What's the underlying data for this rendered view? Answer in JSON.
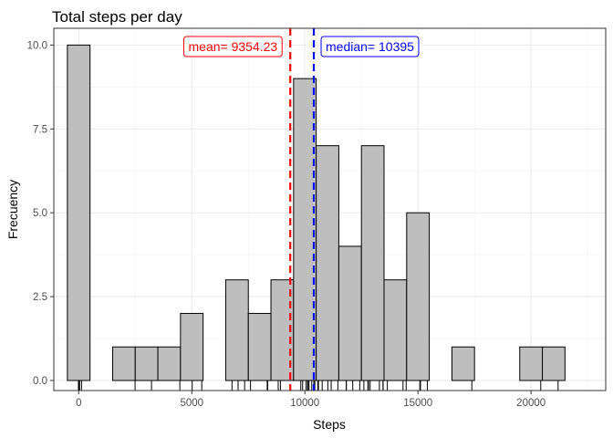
{
  "chart_data": {
    "type": "bar",
    "subtype": "histogram",
    "title": "Total steps per day",
    "xlabel": "Steps",
    "ylabel": "Frecuency",
    "xlim": [
      -1100,
      23300
    ],
    "ylim": [
      -0.3,
      10.5
    ],
    "bin_width": 1000,
    "bins": [
      {
        "center": 0,
        "count": 10
      },
      {
        "center": 2000,
        "count": 1
      },
      {
        "center": 3000,
        "count": 1
      },
      {
        "center": 4000,
        "count": 1
      },
      {
        "center": 5000,
        "count": 2
      },
      {
        "center": 7000,
        "count": 3
      },
      {
        "center": 8000,
        "count": 2
      },
      {
        "center": 9000,
        "count": 3
      },
      {
        "center": 10000,
        "count": 9
      },
      {
        "center": 11000,
        "count": 7
      },
      {
        "center": 12000,
        "count": 4
      },
      {
        "center": 13000,
        "count": 7
      },
      {
        "center": 14000,
        "count": 3
      },
      {
        "center": 15000,
        "count": 5
      },
      {
        "center": 17000,
        "count": 1
      },
      {
        "center": 20000,
        "count": 1
      },
      {
        "center": 21000,
        "count": 1
      }
    ],
    "x_ticks": [
      0,
      5000,
      10000,
      15000,
      20000
    ],
    "x_tick_labels": [
      "0",
      "5000",
      "10000",
      "15000",
      "20000"
    ],
    "y_ticks": [
      0,
      2.5,
      5,
      7.5,
      10
    ],
    "y_tick_labels": [
      "0.0",
      "2.5",
      "5.0",
      "7.5",
      "10.0"
    ],
    "rug": [
      0,
      0,
      0,
      0,
      0,
      0,
      0,
      0,
      41,
      126,
      2492,
      3219,
      4472,
      5018,
      5441,
      6778,
      7047,
      7336,
      7597,
      8334,
      8355,
      8821,
      8918,
      9819,
      9900,
      10056,
      10119,
      10139,
      10183,
      10304,
      10395,
      10439,
      10571,
      10600,
      10765,
      11015,
      11162,
      11458,
      11829,
      11834,
      12116,
      12426,
      12608,
      12787,
      12811,
      12883,
      13294,
      13452,
      13460,
      13646,
      14339,
      14478,
      15084,
      15098,
      15110,
      15414,
      17382,
      20427,
      21194
    ],
    "reference_lines": [
      {
        "label": "mean= 9354.23",
        "value": 9354.23,
        "color": "#ff0000",
        "linestyle": "dashed"
      },
      {
        "label": "median= 10395",
        "value": 10395,
        "color": "#0000ff",
        "linestyle": "dashed"
      }
    ],
    "bar_fill": "#bebebe",
    "bar_stroke": "#000000",
    "grid": true,
    "legend": "none",
    "theme": "bw"
  }
}
